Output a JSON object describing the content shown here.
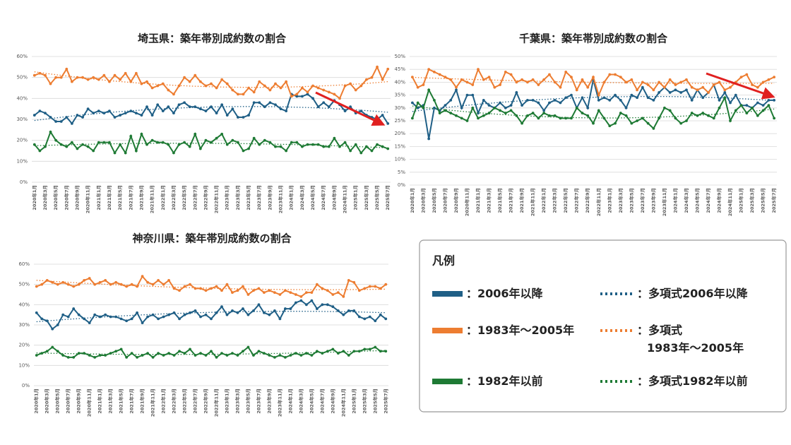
{
  "legend": {
    "title": "凡例",
    "separator": "：",
    "trend_prefix": "多項式",
    "items": [
      {
        "name": "2006年以降",
        "color": "#1f5f86"
      },
      {
        "name": "1983年～2005年",
        "color": "#ed7d31"
      },
      {
        "name": "1982年以前",
        "color": "#1e7a34"
      }
    ]
  },
  "chart_data": [
    {
      "type": "line",
      "title": "埼玉県：築年帯別成約数の割合",
      "categories": [
        "2020年1月",
        null,
        "2020年3月",
        null,
        "2020年5月",
        null,
        "2020年7月",
        null,
        "2020年9月",
        null,
        "2020年11月",
        null,
        "2021年1月",
        null,
        "2021年3月",
        null,
        "2021年5月",
        null,
        "2021年7月",
        null,
        "2021年9月",
        null,
        "2021年11月",
        null,
        "2022年1月",
        null,
        "2022年3月",
        null,
        "2022年5月",
        null,
        "2022年7月",
        null,
        "2022年9月",
        null,
        "2022年11月",
        null,
        "2023年1月",
        null,
        "2023年3月",
        null,
        "2023年5月",
        null,
        "2023年7月",
        null,
        "2023年9月",
        null,
        "2023年11月",
        null,
        "2024年1月",
        null,
        "2024年3月",
        null,
        "2024年5月",
        null,
        "2024年7月",
        null,
        "2024年9月",
        null,
        "2024年11月",
        null,
        "2025年1月",
        null,
        "2025年3月",
        null,
        "2025年5月",
        null,
        "2025年7月"
      ],
      "series": [
        {
          "values": [
            32,
            34,
            33,
            31,
            29,
            29,
            31,
            28,
            32,
            31,
            35,
            33,
            34,
            33,
            34,
            31,
            32,
            33,
            34,
            33,
            32,
            36,
            32,
            37,
            34,
            36,
            33,
            37,
            38,
            36,
            36,
            35,
            34,
            36,
            33,
            37,
            32,
            35,
            31,
            31,
            32,
            38,
            38,
            36,
            38,
            37,
            35,
            34,
            42,
            41,
            41,
            42,
            40,
            36,
            38,
            36,
            39,
            37,
            34,
            36,
            33,
            34,
            32,
            31,
            30,
            32,
            28
          ]
        },
        {
          "values": [
            51,
            52,
            51,
            47,
            50,
            50,
            54,
            48,
            50,
            50,
            49,
            50,
            49,
            51,
            48,
            51,
            49,
            52,
            48,
            52,
            47,
            48,
            45,
            46,
            47,
            44,
            42,
            46,
            50,
            48,
            51,
            48,
            46,
            47,
            45,
            49,
            47,
            44,
            42,
            42,
            45,
            43,
            48,
            46,
            44,
            47,
            45,
            48,
            41,
            42,
            45,
            43,
            46,
            45,
            44,
            43,
            42,
            40,
            46,
            47,
            44,
            46,
            49,
            50,
            55,
            49,
            54
          ]
        },
        {
          "values": [
            18,
            15,
            17,
            24,
            20,
            18,
            17,
            19,
            16,
            18,
            17,
            15,
            19,
            19,
            19,
            14,
            18,
            14,
            22,
            15,
            23,
            18,
            20,
            19,
            19,
            18,
            14,
            18,
            19,
            17,
            23,
            16,
            20,
            19,
            21,
            23,
            18,
            20,
            19,
            15,
            16,
            21,
            18,
            20,
            19,
            17,
            17,
            15,
            19,
            19,
            17,
            18,
            18,
            18,
            17,
            17,
            21,
            17,
            19,
            15,
            18,
            14,
            17,
            15,
            18,
            17,
            16
          ]
        }
      ],
      "ylim": [
        0,
        60
      ],
      "yticks": [
        {
          "value": 0,
          "label": "0%"
        },
        {
          "value": 10,
          "label": "10%"
        },
        {
          "value": 20,
          "label": "20%"
        },
        {
          "value": 30,
          "label": "30%"
        },
        {
          "value": 40,
          "label": "40%"
        },
        {
          "value": 50,
          "label": "50%"
        },
        {
          "value": 60,
          "label": "60%"
        }
      ],
      "grid": true,
      "trend": "polynomial"
    },
    {
      "type": "line",
      "title": "千葉県：築年帯別成約数の割合",
      "categories": [
        "2020年1月",
        null,
        "2020年3月",
        null,
        "2020年5月",
        null,
        "2020年7月",
        null,
        "2020年9月",
        null,
        "2020年11月",
        null,
        "2021年1月",
        null,
        "2021年3月",
        null,
        "2021年5月",
        null,
        "2021年7月",
        null,
        "2021年9月",
        null,
        "2021年11月",
        null,
        "2022年1月",
        null,
        "2022年3月",
        null,
        "2022年5月",
        null,
        "2022年7月",
        null,
        "2022年9月",
        null,
        "2022年11月",
        null,
        "2023年1月",
        null,
        "2023年3月",
        null,
        "2023年5月",
        null,
        "2023年7月",
        null,
        "2023年9月",
        null,
        "2023年11月",
        null,
        "2024年1月",
        null,
        "2024年3月",
        null,
        "2024年5月",
        null,
        "2024年7月",
        null,
        "2024年9月",
        null,
        "2024年11月",
        null,
        "2025年1月",
        null,
        "2025年3月",
        null,
        "2025年5月",
        null,
        "2025年7月"
      ],
      "series": [
        {
          "values": [
            32,
            30,
            31,
            18,
            30,
            29,
            31,
            33,
            37,
            30,
            35,
            35,
            28,
            33,
            31,
            30,
            32,
            30,
            31,
            36,
            31,
            33,
            33,
            32,
            29,
            32,
            33,
            32,
            34,
            35,
            30,
            34,
            30,
            41,
            33,
            34,
            33,
            35,
            33,
            30,
            35,
            34,
            38,
            34,
            33,
            36,
            38,
            36,
            37,
            36,
            37,
            33,
            37,
            34,
            36,
            39,
            33,
            36,
            32,
            35,
            31,
            31,
            30,
            32,
            31,
            33,
            33
          ]
        },
        {
          "values": [
            42,
            38,
            39,
            45,
            44,
            43,
            42,
            41,
            38,
            41,
            40,
            39,
            45,
            41,
            42,
            38,
            39,
            44,
            43,
            40,
            41,
            40,
            41,
            39,
            41,
            43,
            40,
            38,
            44,
            42,
            37,
            41,
            38,
            42,
            35,
            40,
            43,
            43,
            42,
            40,
            41,
            37,
            40,
            39,
            37,
            40,
            38,
            41,
            39,
            40,
            41,
            38,
            37,
            38,
            36,
            39,
            40,
            37,
            38,
            40,
            42,
            43,
            39,
            38,
            40,
            41,
            42
          ]
        },
        {
          "values": [
            26,
            32,
            30,
            37,
            33,
            28,
            29,
            28,
            27,
            26,
            25,
            30,
            26,
            27,
            28,
            30,
            29,
            28,
            29,
            27,
            24,
            27,
            28,
            26,
            28,
            27,
            27,
            26,
            26,
            26,
            30,
            28,
            27,
            24,
            29,
            26,
            23,
            24,
            28,
            27,
            24,
            25,
            26,
            24,
            22,
            26,
            30,
            29,
            26,
            24,
            25,
            28,
            27,
            28,
            27,
            26,
            30,
            34,
            25,
            29,
            31,
            28,
            30,
            27,
            29,
            31,
            26
          ]
        }
      ],
      "ylim": [
        0,
        50
      ],
      "yticks": [
        {
          "value": 0,
          "label": "0%"
        },
        {
          "value": 5,
          "label": "5%"
        },
        {
          "value": 10,
          "label": "10%"
        },
        {
          "value": 15,
          "label": "15%"
        },
        {
          "value": 20,
          "label": "20%"
        },
        {
          "value": 25,
          "label": "25%"
        },
        {
          "value": 30,
          "label": "30%"
        },
        {
          "value": 35,
          "label": "35%"
        },
        {
          "value": 40,
          "label": "40%"
        },
        {
          "value": 45,
          "label": "45%"
        },
        {
          "value": 50,
          "label": "50%"
        }
      ],
      "grid": true,
      "trend": "polynomial"
    },
    {
      "type": "line",
      "title": "神奈川県：築年帯別成約数の割合",
      "categories": [
        "2020年1月",
        null,
        "2020年3月",
        null,
        "2020年5月",
        null,
        "2020年7月",
        null,
        "2020年9月",
        null,
        "2020年11月",
        null,
        "2021年1月",
        null,
        "2021年3月",
        null,
        "2021年5月",
        null,
        "2021年7月",
        null,
        "2021年9月",
        null,
        "2021年11月",
        null,
        "2022年1月",
        null,
        "2022年3月",
        null,
        "2022年5月",
        null,
        "2022年7月",
        null,
        "2022年9月",
        null,
        "2022年11月",
        null,
        "2023年1月",
        null,
        "2023年3月",
        null,
        "2023年5月",
        null,
        "2023年7月",
        null,
        "2023年9月",
        null,
        "2023年11月",
        null,
        "2024年1月",
        null,
        "2024年3月",
        null,
        "2024年5月",
        null,
        "2024年7月",
        null,
        "2024年9月",
        null,
        "2024年11月",
        null,
        "2025年1月",
        null,
        "2025年3月",
        null,
        "2025年5月",
        null,
        "2025年7月"
      ],
      "series": [
        {
          "values": [
            36,
            33,
            32,
            28,
            30,
            35,
            34,
            38,
            35,
            33,
            31,
            35,
            34,
            35,
            34,
            34,
            33,
            32,
            33,
            36,
            31,
            34,
            35,
            33,
            34,
            35,
            36,
            33,
            35,
            36,
            37,
            34,
            35,
            33,
            36,
            39,
            35,
            37,
            36,
            38,
            35,
            37,
            40,
            36,
            35,
            37,
            33,
            38,
            38,
            41,
            42,
            40,
            42,
            38,
            40,
            40,
            39,
            37,
            35,
            37,
            37,
            34,
            33,
            34,
            32,
            35,
            33
          ]
        },
        {
          "values": [
            49,
            50,
            52,
            51,
            50,
            51,
            50,
            49,
            50,
            52,
            53,
            50,
            51,
            52,
            50,
            51,
            50,
            49,
            50,
            49,
            54,
            51,
            50,
            52,
            50,
            52,
            48,
            47,
            49,
            50,
            48,
            48,
            47,
            48,
            49,
            47,
            50,
            46,
            47,
            49,
            45,
            47,
            48,
            46,
            47,
            46,
            45,
            47,
            46,
            45,
            44,
            46,
            46,
            50,
            48,
            47,
            45,
            46,
            44,
            52,
            51,
            47,
            48,
            49,
            49,
            48,
            50
          ]
        },
        {
          "values": [
            15,
            16,
            17,
            19,
            17,
            15,
            14,
            14,
            16,
            16,
            15,
            14,
            15,
            15,
            16,
            17,
            18,
            14,
            16,
            14,
            15,
            16,
            14,
            16,
            15,
            16,
            15,
            17,
            16,
            18,
            15,
            16,
            15,
            17,
            14,
            16,
            15,
            16,
            15,
            17,
            19,
            15,
            17,
            16,
            15,
            14,
            15,
            14,
            15,
            16,
            15,
            16,
            15,
            17,
            16,
            17,
            18,
            16,
            17,
            15,
            17,
            17,
            18,
            18,
            19,
            17,
            17
          ]
        }
      ],
      "ylim": [
        0,
        60
      ],
      "yticks": [
        {
          "value": 0,
          "label": "0%"
        },
        {
          "value": 10,
          "label": "10%"
        },
        {
          "value": 20,
          "label": "20%"
        },
        {
          "value": 30,
          "label": "30%"
        },
        {
          "value": 40,
          "label": "40%"
        },
        {
          "value": 50,
          "label": "50%"
        },
        {
          "value": 60,
          "label": "60%"
        }
      ],
      "grid": true,
      "trend": "polynomial"
    }
  ]
}
